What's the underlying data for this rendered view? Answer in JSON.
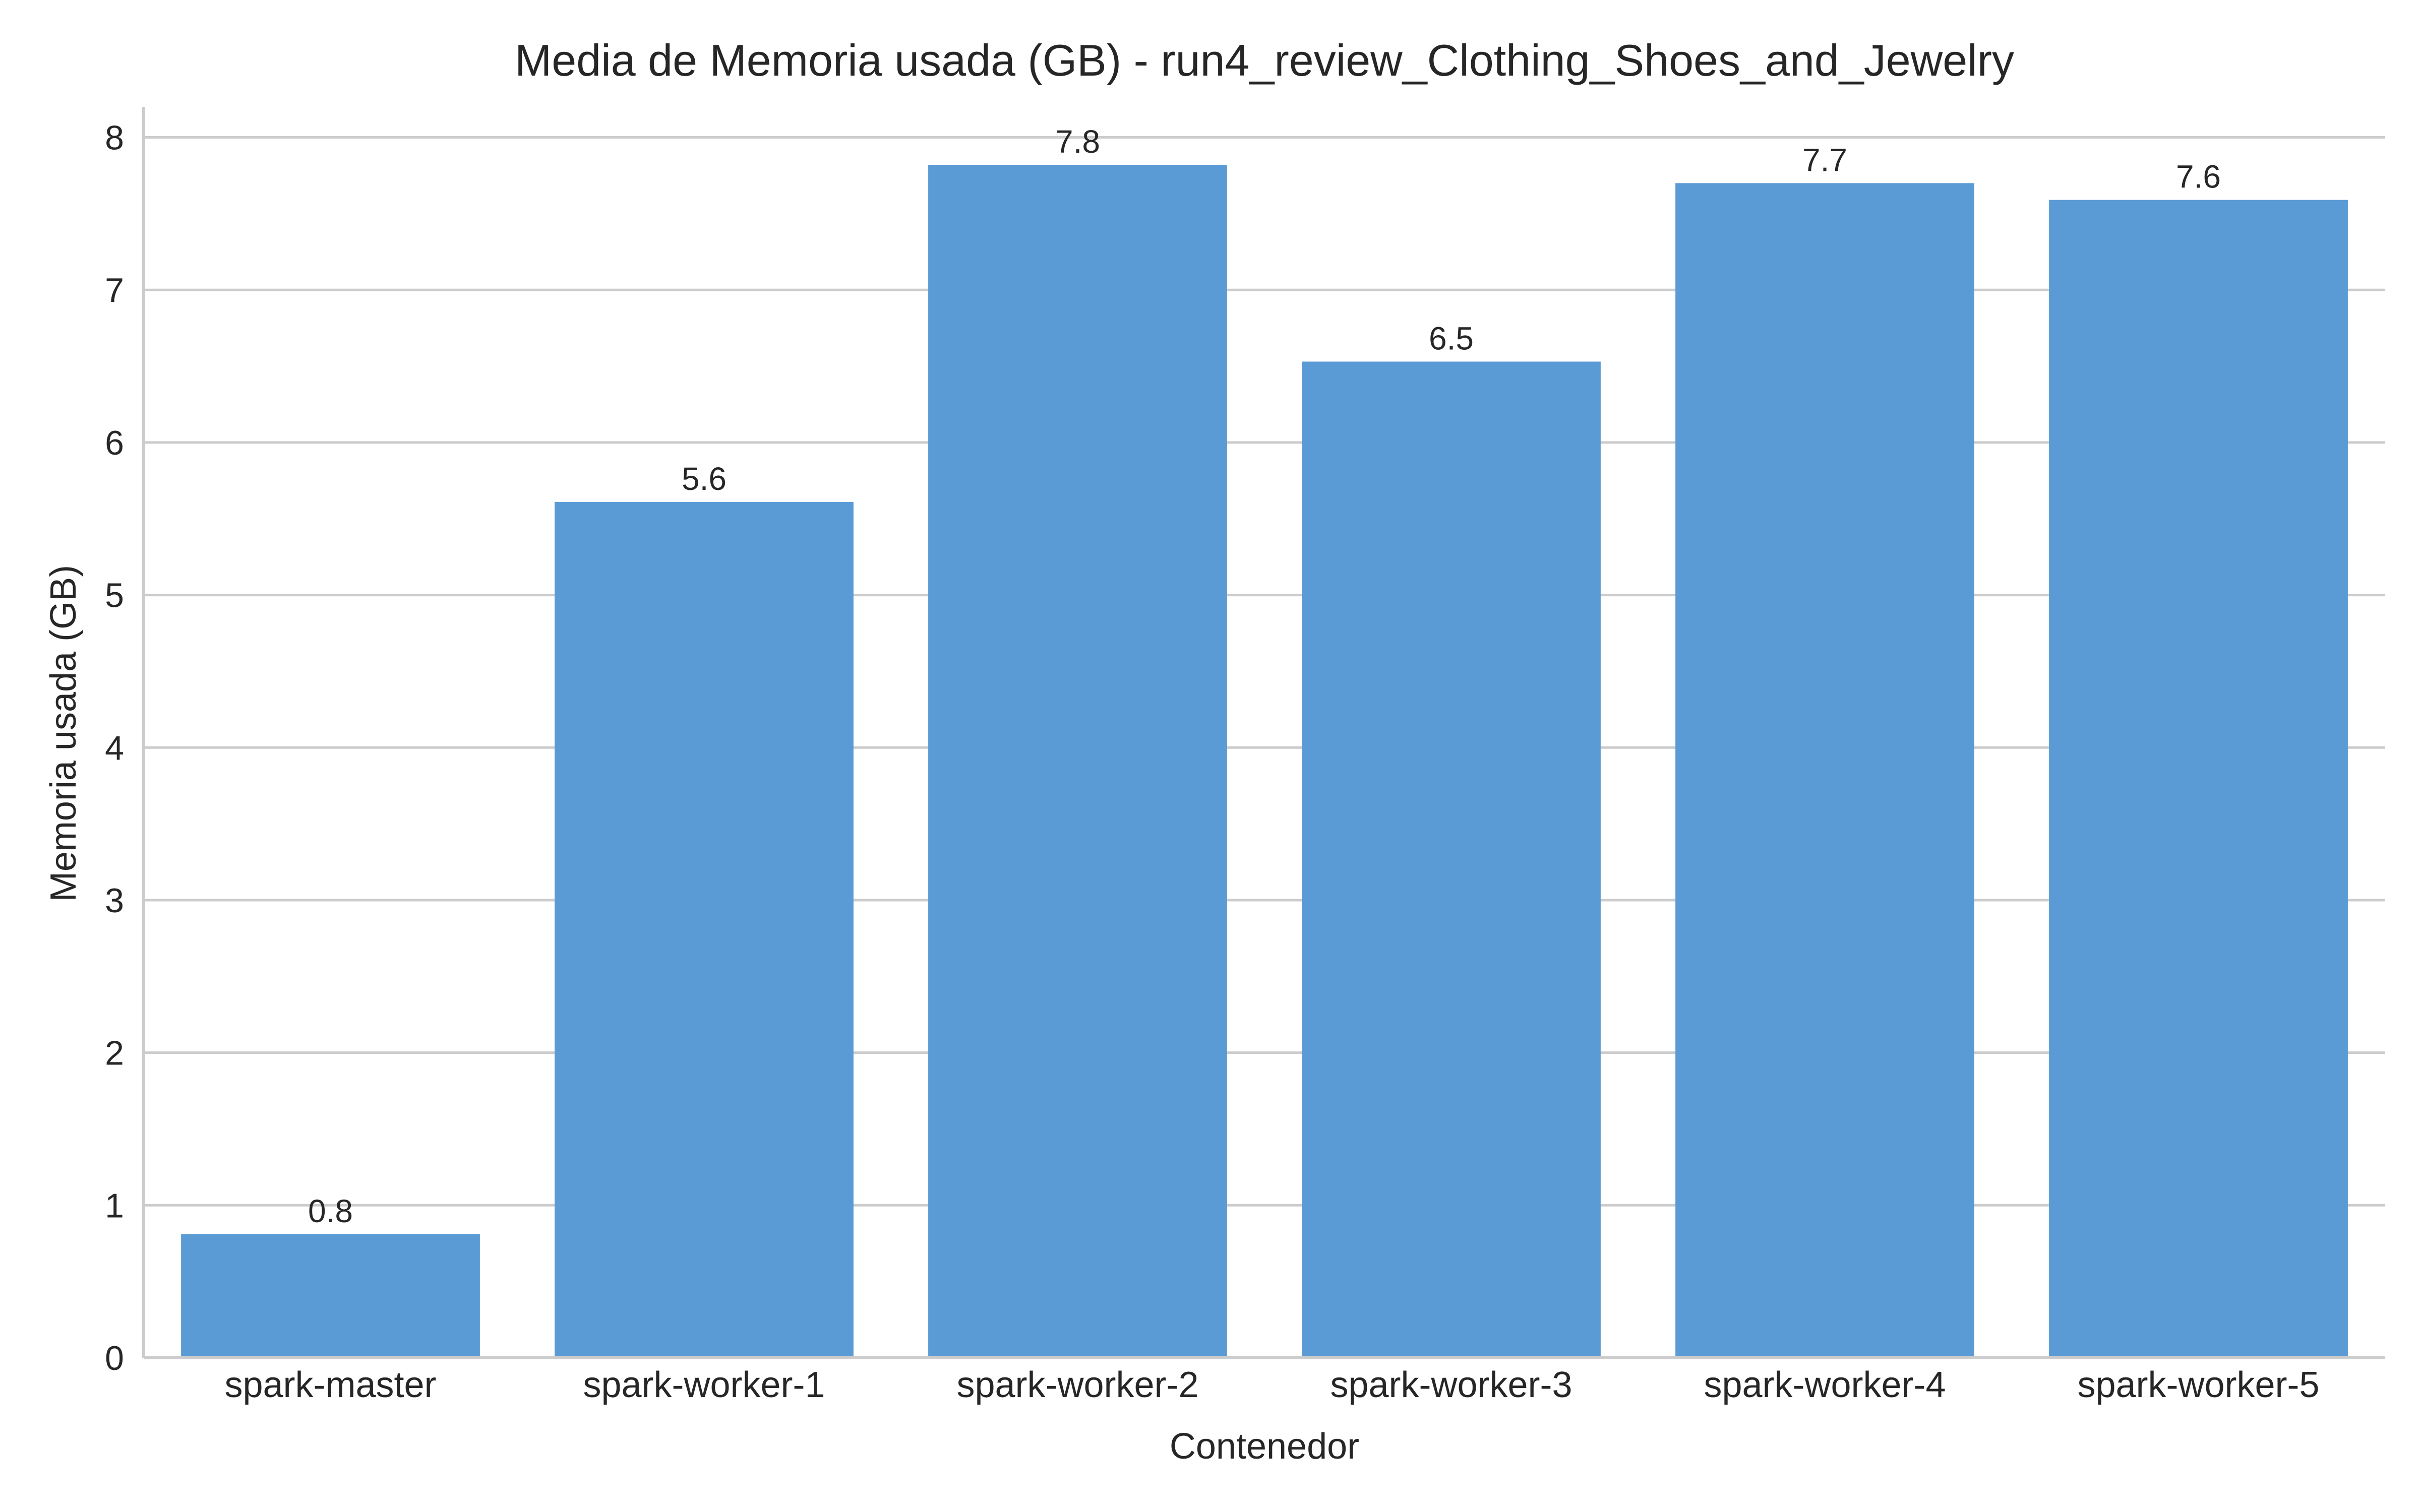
{
  "chart_data": {
    "type": "bar",
    "title": "Media de Memoria usada (GB) - run4_review_Clothing_Shoes_and_Jewelry",
    "xlabel": "Contenedor",
    "ylabel": "Memoria usada (GB)",
    "categories": [
      "spark-master",
      "spark-worker-1",
      "spark-worker-2",
      "spark-worker-3",
      "spark-worker-4",
      "spark-worker-5"
    ],
    "values": [
      0.81,
      5.61,
      7.82,
      6.53,
      7.7,
      7.59
    ],
    "data_labels": [
      "0.8",
      "5.6",
      "7.8",
      "6.5",
      "7.7",
      "7.6"
    ],
    "ylim": [
      0,
      8.2
    ],
    "yticks": [
      0,
      1,
      2,
      3,
      4,
      5,
      6,
      7,
      8
    ],
    "ytick_labels": [
      "0",
      "1",
      "2",
      "3",
      "4",
      "5",
      "6",
      "7",
      "8"
    ],
    "grid": "horizontal",
    "bar_color": "#5b9bd5",
    "grid_color": "#cccccc",
    "axis_color": "#cccccc",
    "text_color": "#262626"
  }
}
